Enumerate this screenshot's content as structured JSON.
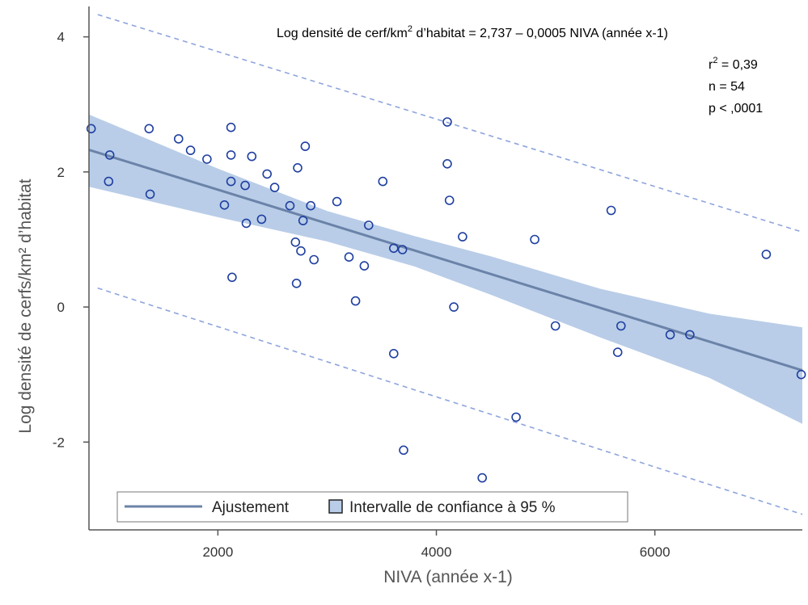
{
  "chart_data": {
    "type": "scatter",
    "xlabel": "NIVA (année x-1)",
    "ylabel": "Log densité de cerfs/km² d’habitat",
    "xlim": [
      820,
      7350
    ],
    "ylim": [
      -3.3,
      4.45
    ],
    "xticks": [
      2000,
      4000,
      6000
    ],
    "xtick_labels": [
      "2000",
      "4000",
      "6000"
    ],
    "yticks": [
      4,
      2,
      0,
      -2
    ],
    "ytick_labels": [
      "4",
      "2",
      "0",
      "-2"
    ],
    "grid": false,
    "legend_position": "bottom-left",
    "colors": {
      "points": "#1f3fa0",
      "fit_line": "#6b83a8",
      "band_fill": "#b9cde8",
      "prediction": "#8ea4dc",
      "axis": "#555555"
    },
    "fit": {
      "intercept": 2.737,
      "slope": -0.0005,
      "x_range": [
        820,
        7350
      ]
    },
    "confidence_band": {
      "x": [
        820,
        2000,
        3000,
        3800,
        4500,
        5500,
        6500,
        7350
      ],
      "lower": [
        1.78,
        1.33,
        0.97,
        0.6,
        0.18,
        -0.45,
        -1.05,
        -1.73
      ],
      "upper": [
        2.85,
        2.05,
        1.42,
        1.05,
        0.75,
        0.27,
        -0.1,
        -0.3
      ]
    },
    "prediction_upper": {
      "x": [
        900,
        7350
      ],
      "y": [
        4.33,
        1.11
      ]
    },
    "prediction_lower": {
      "x": [
        900,
        7350
      ],
      "y": [
        0.28,
        -3.07
      ]
    },
    "series": [
      {
        "name": "NIVA",
        "x": [
          840,
          1010,
          1000,
          1370,
          1380,
          1640,
          1750,
          1900,
          2060,
          2120,
          2120,
          2120,
          2130,
          2250,
          2260,
          2310,
          2400,
          2450,
          2520,
          2660,
          2710,
          2720,
          2730,
          2760,
          2780,
          2800,
          2850,
          2880,
          3090,
          3200,
          3260,
          3340,
          3380,
          3510,
          3610,
          3610,
          3690,
          3700,
          4100,
          4100,
          4120,
          4160,
          4240,
          4420,
          4730,
          4900,
          5090,
          5600,
          5660,
          5690,
          6140,
          6320,
          7020,
          7340
        ],
        "y": [
          2.64,
          2.25,
          1.86,
          2.64,
          1.67,
          2.49,
          2.32,
          2.19,
          1.51,
          2.66,
          2.25,
          1.86,
          0.44,
          1.8,
          1.24,
          2.23,
          1.3,
          1.97,
          1.77,
          1.5,
          0.96,
          0.35,
          2.06,
          0.83,
          1.28,
          2.38,
          1.5,
          0.7,
          1.56,
          0.74,
          0.09,
          0.61,
          1.21,
          1.86,
          0.87,
          -0.69,
          0.85,
          -2.12,
          2.74,
          2.12,
          1.58,
          0.0,
          1.04,
          -2.53,
          -1.63,
          1.0,
          -0.28,
          1.43,
          -0.67,
          -0.28,
          -0.41,
          -0.41,
          0.78,
          -1.0
        ]
      }
    ],
    "annotations": {
      "equation_prefix": "Log densité de cerf/km",
      "equation_sup": "2",
      "equation_suffix": " d’habitat = 2,737 – 0,0005 NIVA (année x-1)",
      "r2_prefix": "r",
      "r2_sup": "2",
      "r2_suffix": " = 0,39",
      "n": "n = 54",
      "p": "p < ,0001"
    },
    "legend": {
      "fit_label": "Ajustement",
      "band_label": "Intervalle de confiance à 95 %"
    }
  }
}
